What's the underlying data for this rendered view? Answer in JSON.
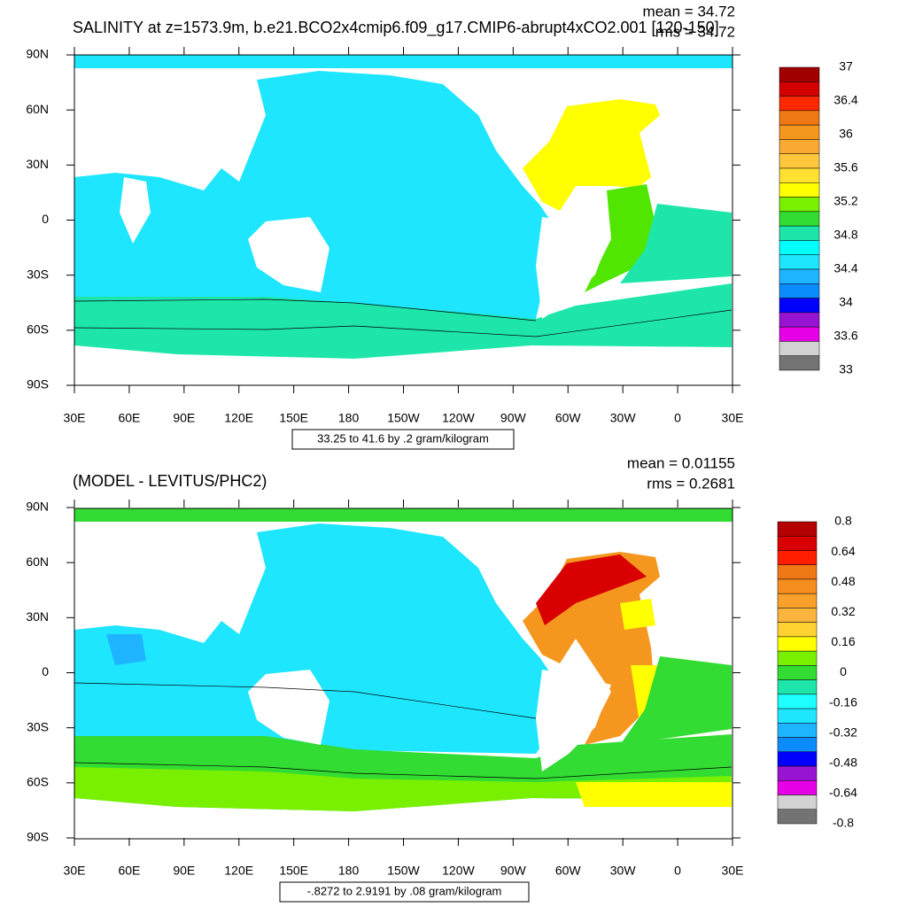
{
  "panels": [
    {
      "title": "SALINITY at z=1573.9m, b.e21.BCO2x4cmip6.f09_g17.CMIP6-abrupt4xCO2.001 [120-150]",
      "mean": "mean = 34.72",
      "rms": "rms = 34.72",
      "lat_labels": [
        "90N",
        "60N",
        "30N",
        "0",
        "30S",
        "60S",
        "90S"
      ],
      "lon_labels": [
        "30E",
        "60E",
        "90E",
        "120E",
        "150E",
        "180",
        "150W",
        "120W",
        "90W",
        "60W",
        "30W",
        "0",
        "30E"
      ],
      "colorbar": {
        "colors": [
          "#a00000",
          "#d20000",
          "#ff2800",
          "#f07814",
          "#f5961e",
          "#faaa32",
          "#ffc83c",
          "#ffe132",
          "#ffff00",
          "#78f000",
          "#32dc32",
          "#1ee6aa",
          "#00ffff",
          "#1ee6ff",
          "#1eb4ff",
          "#0a8cff",
          "#0000ff",
          "#9614d2",
          "#e600e6",
          "#d2d2d2",
          "#737373"
        ],
        "labels": [
          "37",
          "36.4",
          "36",
          "35.6",
          "35.2",
          "34.8",
          "34.4",
          "34",
          "33.6",
          "33"
        ]
      },
      "range_note": "33.25 to 41.6 by .2 gram/kilogram"
    },
    {
      "title": "(MODEL - LEVITUS/PHC2)",
      "mean": "mean = 0.01155",
      "rms": "rms = 0.2681",
      "lat_labels": [
        "90N",
        "60N",
        "30N",
        "0",
        "30S",
        "60S",
        "90S"
      ],
      "lon_labels": [
        "30E",
        "60E",
        "90E",
        "120E",
        "150E",
        "180",
        "150W",
        "120W",
        "90W",
        "60W",
        "30W",
        "0",
        "30E"
      ],
      "colorbar": {
        "colors": [
          "#b40000",
          "#d80000",
          "#ff1e00",
          "#f07814",
          "#f58c1e",
          "#f9a02a",
          "#fbb43c",
          "#ffd232",
          "#ffff00",
          "#78f000",
          "#32dc32",
          "#1ee6aa",
          "#1effff",
          "#1ee6ff",
          "#1eb4ff",
          "#0a8cff",
          "#0000ff",
          "#9614d2",
          "#e600e6",
          "#d2d2d2",
          "#737373"
        ],
        "labels": [
          "0.8",
          "0.64",
          "0.48",
          "0.32",
          "0.16",
          "0",
          "-0.16",
          "-0.32",
          "-0.48",
          "-0.64",
          "-0.8"
        ]
      },
      "range_note": "-.8272 to 2.9191 by .08 gram/kilogram"
    }
  ]
}
